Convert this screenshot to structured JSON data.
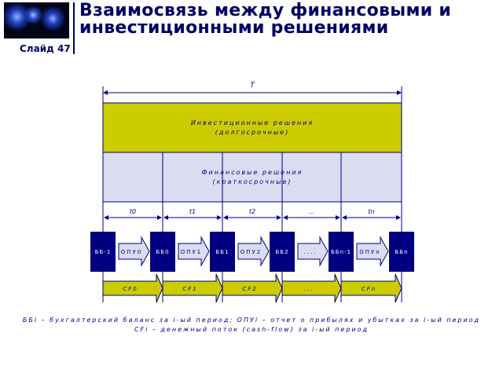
{
  "header": {
    "title_line1": "Взаимосвязь между финансовыми и",
    "title_line2": "инвестиционными решениями",
    "slide_label": "Слайд 47"
  },
  "diagram": {
    "total_label": "T",
    "invest_line1": "Инвестиционные решения",
    "invest_line2": "(долгосрочные)",
    "finance_line1": "Финансовые решения",
    "finance_line2": "(краткосрочные)",
    "periods": [
      "t0",
      "t1",
      "t2",
      "...",
      "tn"
    ],
    "balances": [
      "ББ-1",
      "ББ0",
      "ББ1",
      "ББ2",
      "ББn-1",
      "ББn"
    ],
    "reports": [
      "ОПУ0",
      "ОПУ1",
      "ОПУ2",
      "....",
      "ОПУn"
    ],
    "cashflows": [
      "CF0",
      "CF1",
      "CF2",
      "...",
      "CFn"
    ],
    "colors": {
      "navy": "#000080",
      "olive": "#cccc00",
      "lavender": "#dadcf0"
    }
  },
  "footer": {
    "line1": "ББi – бухгалтерский баланс за i-ый период; ОПУi – отчет о прибылях и убытках за i-ый период",
    "line2": "CFi – денежный поток (cash-flow) за i-ый период"
  }
}
